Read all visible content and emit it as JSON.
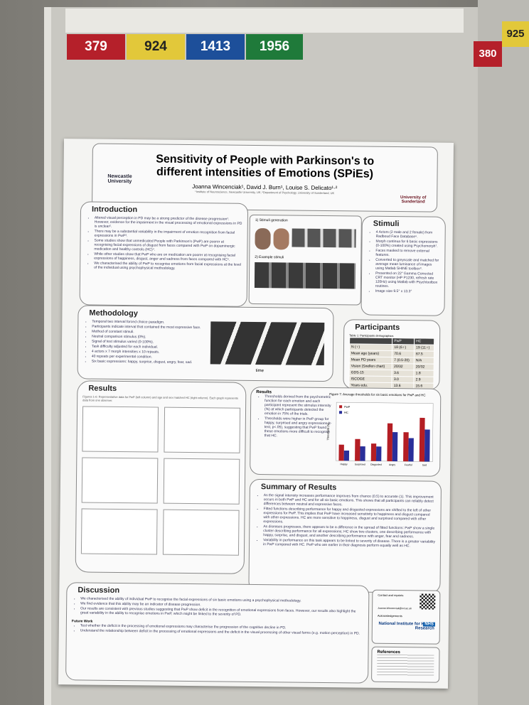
{
  "board_numbers": [
    "379",
    "924",
    "1413",
    "1956"
  ],
  "side_board_numbers": [
    "380",
    "925"
  ],
  "poster": {
    "title": "Sensitivity of People with Parkinson's to different intensities of Emotions (SPiEs)",
    "authors": "Joanna Wincenciak¹, David J. Burn¹, Louise S. Delicato¹·²",
    "affiliations": "¹Institute of Neuroscience, Newcastle University, UK; ²Department of Psychology, University of Sunderland, UK",
    "logos": [
      "Newcastle University",
      "University of Sunderland"
    ],
    "introduction": {
      "heading": "Introduction",
      "text": [
        "Altered visual perception in PD may be a strong predictor of the disease progression¹. However, evidence for the impairment in the visual processing of emotional expressions in PD is unclear².",
        "There may be a substantial variability in the impairment of emotion recognition from facial expressions in PwP³.",
        "Some studies show that unmedicated People with Parkinson's (PwP) are poorer at recognising facial expressions of disgust from faces compared with PwP on dopaminergic medication and healthy controls (HC)⁴.",
        "While other studies show that PwP who are on medication are poorer at recognising facial expressions of happiness, disgust, anger and sadness from faces compared with HC⁵.",
        "We characterised the ability of PwP to recognise emotions from facial expressions at the level of the individual using psychophysical methodology."
      ]
    },
    "stimuli_figure": {
      "generation": "1) Stimuli generation",
      "examples": "2) Example stimuli"
    },
    "stimuli": {
      "heading": "Stimuli",
      "text": [
        "4 Actors (2 male and 2 female) from Radboud Face Database⁶.",
        "Morph continua for 6 basic expressions (0-100%) created using Psychomorph⁷.",
        "Faces masked to remove external features.",
        "Converted to greyscale and matched for average mean luminance of images using Matlab SHINE toolbox⁸.",
        "Presented on 22\" Gamma Corrected CRT monitor (HP P1230, refresh rate 120Hz) using Matlab with Psychtoolbox routines.",
        "Image size 9.5° x 13.3°"
      ]
    },
    "methodology": {
      "heading": "Methodology",
      "text": [
        "Temporal two interval forced choice paradigm.",
        "Participants indicate interval that contained the most expressive face.",
        "Method of constant stimuli.",
        "Neutral comparison stimulus (0%).",
        "Signal of test stimulus varied (0-100%).",
        "Task difficulty adjusted for each individual.",
        "4 actors x 7 morph intensities x 10 repeats.",
        "40 repeats per experimental condition.",
        "Six basic expressions: happy, surprise, disgust, angry, fear, sad."
      ],
      "axis": "time"
    },
    "participants": {
      "heading": "Participants",
      "caption": "Table 1: Participants demographics",
      "columns": [
        "",
        "PwP",
        "HC"
      ],
      "rows": [
        [
          "N (♀)",
          "18 (6♀)",
          "19 (11♀)"
        ],
        [
          "Mean age (years)",
          "70.6",
          "67.5"
        ],
        [
          "Mean PD years",
          "7 (0.5-20)",
          "N/A"
        ],
        [
          "Vision (Snellen chart)",
          "20/32",
          "20/32"
        ],
        [
          "GDS-15",
          "3.6",
          "1.8"
        ],
        [
          "ISCOGE",
          "3.0",
          "2.9"
        ],
        [
          "Years edu.",
          "13.6",
          "15.6"
        ]
      ]
    },
    "results": {
      "heading": "Results",
      "caption": "Figures 1-6: Representative data for PwP (left column) and age and sex matched HC (right column). Each graph represents data from one observer.",
      "sub_heading": "Results",
      "text": [
        "Thresholds derived from the psychometric function for each emotion and each participant represent the stimulus intensity (%) at which participants detected the emotion in 75% of the trials.",
        "Thresholds were higher in PwP group for happy, surprised and angry expressions (t-test, p<.05), suggesting that PwP found these emotions more difficult to recognise that HC."
      ]
    },
    "figure7": {
      "title": "Figure 7: Average thresholds for six basic emotions for PwP and HC",
      "y_label": "Threshold (%)",
      "categories": [
        "Happy",
        "Surprised",
        "Disgusted",
        "Angry",
        "Fearful",
        "Sad"
      ],
      "ylim": [
        0,
        80
      ],
      "series": [
        {
          "name": "PwP",
          "color": "#b41e24",
          "values": [
            22,
            30,
            24,
            52,
            40,
            60
          ]
        },
        {
          "name": "HC",
          "color": "#2a2f9a",
          "values": [
            14,
            20,
            20,
            40,
            32,
            44
          ]
        }
      ]
    },
    "summary": {
      "heading": "Summary of Results",
      "text": [
        "As the signal intensity increases performance improves from chance (0.5) to accurate (1). This improvement occurs in both PwP and HC and for all six basic emotions. This shows that all participants can reliably detect differences between neutral and expressive faces.",
        "Fitted functions describing performance for happy and disgusted expressions are shifted to the left of other expressions for PwP. This implies that PwP have increased sensitivity to happiness and disgust compared with other expressions. HC are more sensitive to happiness, disgust and surprised compared with other expressions.",
        "As diseases progresses, there appears to be a difference in the spread of fitted functions: PwP show a single cluster describing performance for all expressions; HC show two clusters, one describing performance with happy, surprise, and disgust, and another describing performance with anger, fear and sadness.",
        "Variability in performance on this task appears to be linked to severity of disease. There is a greater variability in PwP compared with HC. PwP who are earlier in their diagnosis perform equally well as HC."
      ]
    },
    "discussion": {
      "heading": "Discussion",
      "text": [
        "We characterised the ability of individual PwP to recognise the facial expressions of six basic emotions using a psychophysical methodology.",
        "We find evidence that this ability may be an indicator of disease progression.",
        "Our results are consistent with previous studies suggesting that PwP show deficit in the recognition of emotional expressions from faces. However, our results also highlight the great variability in the ability to recognise emotions in PwP, which might be linked to the severity of PD."
      ],
      "future_heading": "Future Work",
      "future": [
        "Test whether the deficit in the processing of emotional expressions may characterise the progression of the cognitive decline in PD.",
        "Understand the relationship between deficit in the processing of emotional expressions and the deficit in the visual processing of other visual forms (e.g. motion perception) in PD."
      ]
    },
    "contact": {
      "heading": "Contact and reprints",
      "email": "Joanna.Wincenciak@ncl.ac.uk",
      "ack": "Acknowledgements",
      "funder": "National Institute for Health Research",
      "nhs": "NHS"
    },
    "references": {
      "heading": "References"
    }
  }
}
